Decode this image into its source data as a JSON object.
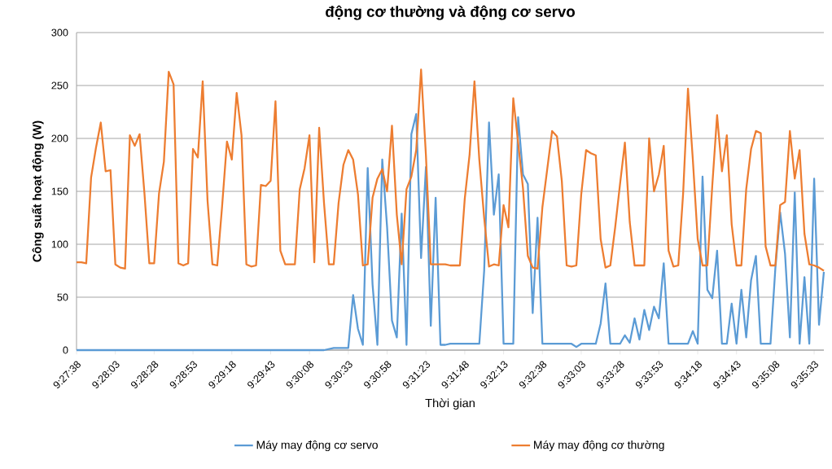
{
  "chart_data": {
    "type": "line",
    "title": "động cơ thường và động cơ servo",
    "xlabel": "Thời gian",
    "ylabel": "Công suất hoạt động  (W)",
    "categories": [
      "9:27:38",
      null,
      null,
      null,
      null,
      null,
      null,
      null,
      "9:28:03",
      null,
      null,
      null,
      null,
      null,
      null,
      null,
      "9:28:28",
      null,
      null,
      null,
      null,
      null,
      null,
      null,
      "9:28:53",
      null,
      null,
      null,
      null,
      null,
      null,
      null,
      "9:29:18",
      null,
      null,
      null,
      null,
      null,
      null,
      null,
      "9:29:43",
      null,
      null,
      null,
      null,
      null,
      null,
      null,
      "9:30:08",
      null,
      null,
      null,
      null,
      null,
      null,
      null,
      "9:30:33",
      null,
      null,
      null,
      null,
      null,
      null,
      null,
      "9:30:58",
      null,
      null,
      null,
      null,
      null,
      null,
      null,
      "9:31:23",
      null,
      null,
      null,
      null,
      null,
      null,
      null,
      "9:31:48",
      null,
      null,
      null,
      null,
      null,
      null,
      null,
      "9:32:13",
      null,
      null,
      null,
      null,
      null,
      null,
      null,
      "9:32:38",
      null,
      null,
      null,
      null,
      null,
      null,
      null,
      "9:33:03",
      null,
      null,
      null,
      null,
      null,
      null,
      null,
      "9:33:28",
      null,
      null,
      null,
      null,
      null,
      null,
      null,
      "9:33:53",
      null,
      null,
      null,
      null,
      null,
      null,
      null,
      "9:34:18",
      null,
      null,
      null,
      null,
      null,
      null,
      null,
      "9:34:43",
      null,
      null,
      null,
      null,
      null,
      null,
      null,
      "9:35:08",
      null,
      null,
      null,
      null,
      null,
      null,
      null,
      "9:35:33",
      null,
      null
    ],
    "series": [
      {
        "name": "Máy may động cơ servo",
        "color": "#5b9bd5",
        "values": [
          0,
          0,
          0,
          0,
          0,
          0,
          0,
          0,
          0,
          0,
          0,
          0,
          0,
          0,
          0,
          0,
          0,
          0,
          0,
          0,
          0,
          0,
          0,
          0,
          0,
          0,
          0,
          0,
          0,
          0,
          0,
          0,
          0,
          0,
          0,
          0,
          0,
          0,
          0,
          0,
          0,
          0,
          0,
          0,
          0,
          0,
          0,
          0,
          0,
          0,
          0,
          0,
          1,
          2,
          2,
          2,
          2,
          52,
          20,
          5,
          172,
          62,
          5,
          180,
          116,
          28,
          12,
          129,
          5,
          204,
          223,
          87,
          173,
          23,
          144,
          5,
          5,
          6,
          6,
          6,
          6,
          6,
          6,
          6,
          75,
          215,
          128,
          166,
          6,
          6,
          6,
          220,
          166,
          157,
          35,
          125,
          6,
          6,
          6,
          6,
          6,
          6,
          6,
          3,
          6,
          6,
          6,
          6,
          25,
          63,
          6,
          6,
          6,
          14,
          7,
          30,
          10,
          38,
          19,
          41,
          30,
          82,
          6,
          6,
          6,
          6,
          6,
          18,
          6,
          164,
          57,
          49,
          94,
          6,
          6,
          44,
          6,
          57,
          12,
          66,
          89,
          6,
          6,
          6,
          77,
          130,
          91,
          12,
          149,
          6,
          69,
          6,
          162,
          24,
          74
        ]
      },
      {
        "name": "Máy may động cơ thường",
        "color": "#ed7d31",
        "values": [
          83,
          83,
          82,
          163,
          191,
          215,
          169,
          170,
          81,
          78,
          77,
          203,
          193,
          204,
          148,
          82,
          82,
          148,
          178,
          263,
          251,
          82,
          80,
          82,
          190,
          182,
          254,
          141,
          81,
          80,
          136,
          197,
          180,
          243,
          203,
          81,
          79,
          80,
          156,
          155,
          160,
          235,
          94,
          81,
          81,
          81,
          152,
          172,
          203,
          83,
          210,
          139,
          81,
          81,
          139,
          175,
          189,
          180,
          147,
          80,
          81,
          144,
          162,
          171,
          150,
          212,
          128,
          81,
          152,
          164,
          189,
          265,
          184,
          81,
          81,
          81,
          81,
          80,
          80,
          80,
          143,
          185,
          254,
          180,
          125,
          79,
          81,
          80,
          137,
          116,
          238,
          196,
          153,
          89,
          78,
          77,
          135,
          171,
          207,
          202,
          160,
          80,
          79,
          80,
          147,
          189,
          186,
          184,
          105,
          78,
          80,
          116,
          157,
          196,
          121,
          80,
          80,
          80,
          200,
          150,
          166,
          193,
          94,
          79,
          80,
          148,
          247,
          180,
          105,
          80,
          80,
          155,
          222,
          169,
          203,
          119,
          80,
          80,
          152,
          190,
          207,
          205,
          98,
          80,
          80,
          137,
          140,
          207,
          162,
          189,
          110,
          81,
          80,
          78,
          75
        ]
      }
    ],
    "ylim": [
      0,
      300
    ],
    "yticks": [
      0,
      50,
      100,
      150,
      200,
      250,
      300
    ],
    "grid": "y",
    "legend": "bottom"
  }
}
